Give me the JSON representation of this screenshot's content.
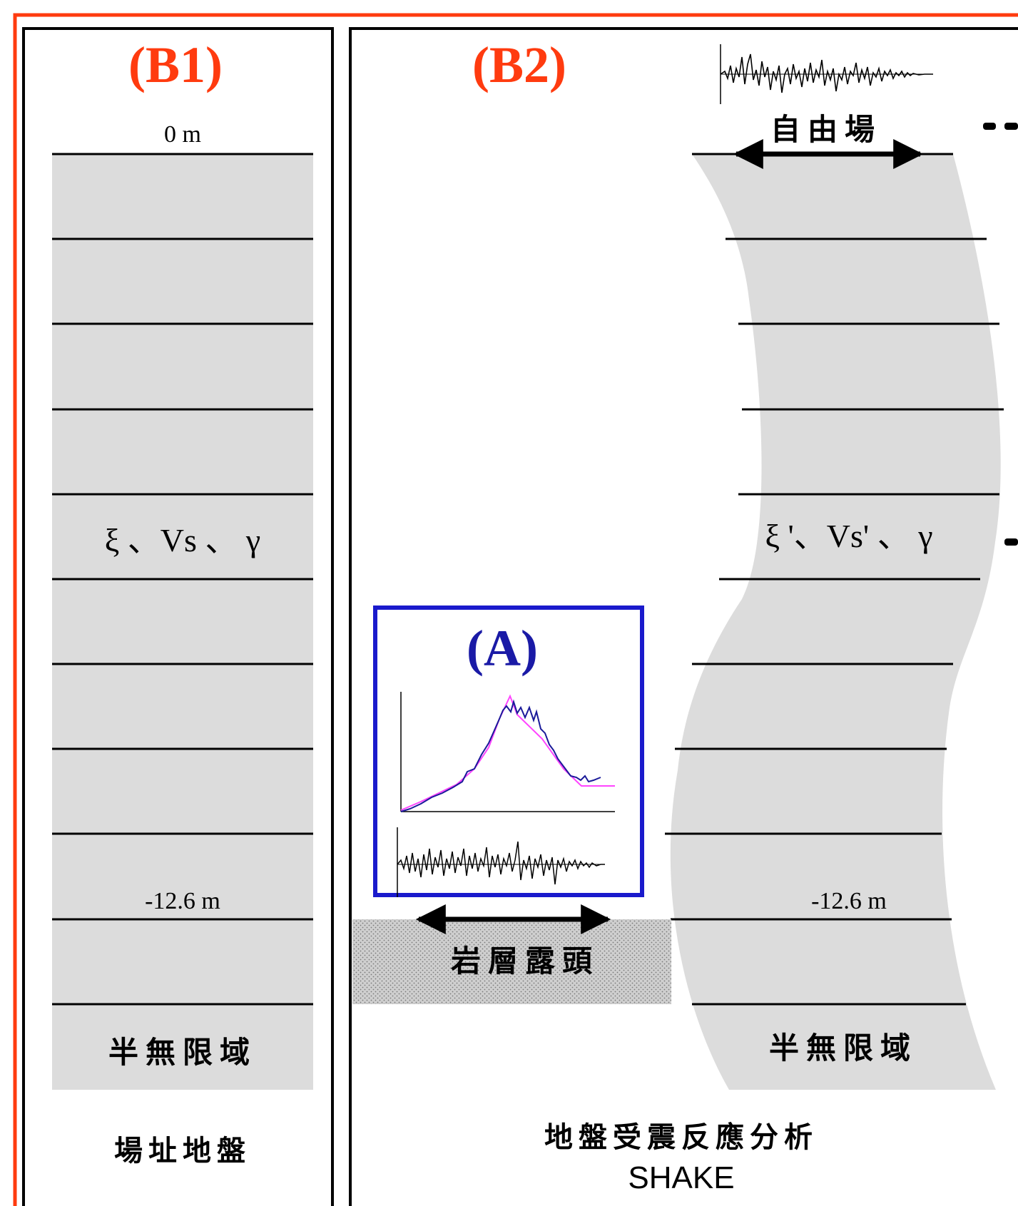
{
  "panels": {
    "b1": {
      "tag": "(B1)",
      "top_depth": "0 m",
      "mid_params": "ξ 、Vs 、 γ",
      "bottom_depth": "-12.6 m",
      "halfspace": "半無限域",
      "caption": "場址地盤"
    },
    "b2": {
      "tag": "(B2)",
      "free_field": "自由場",
      "mid_params": "ξ '、Vs' 、 γ",
      "bottom_depth": "-12.6 m",
      "outcrop": "岩層露頭",
      "halfspace": "半無限域",
      "caption_line1": "地盤受震反應分析",
      "caption_line2": "SHAKE"
    },
    "a": {
      "tag": "(A)"
    }
  },
  "colors": {
    "outer_frame": "#ff3b0f",
    "tag_b": "#ff3b0f",
    "tag_a": "#1a1aa6",
    "box_a": "#1a1acc",
    "soil_fill": "#dcdcdc",
    "outcrop_fill": "#bdbdbd",
    "spectrum_target": "#ff44ff",
    "spectrum_match": "#1a1a99"
  }
}
